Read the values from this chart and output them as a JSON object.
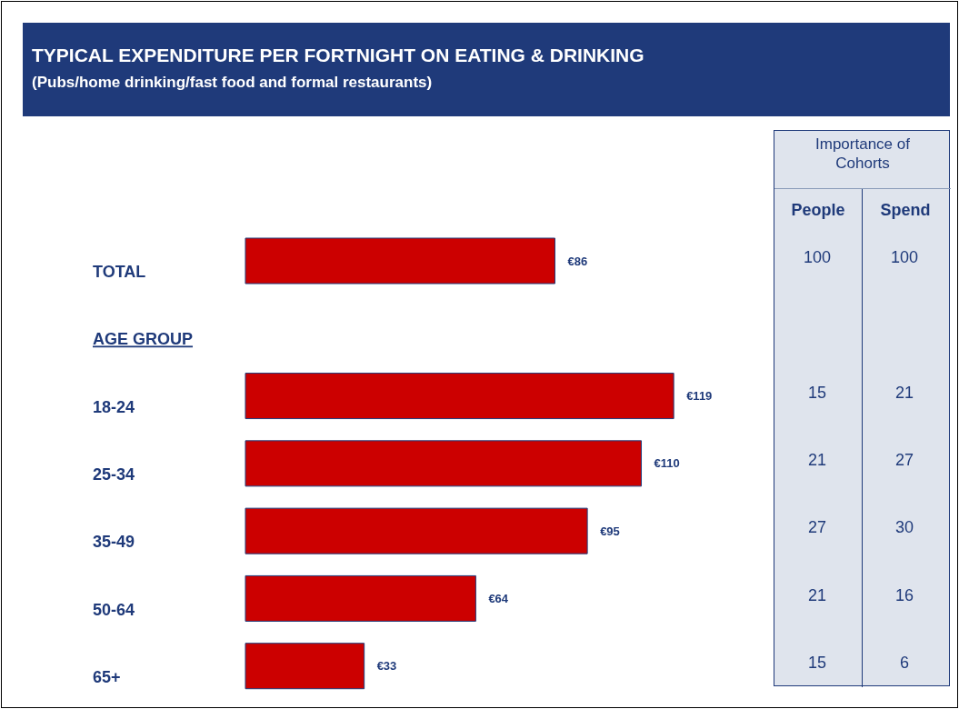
{
  "chart_data": {
    "type": "bar",
    "orientation": "horizontal",
    "title": "TYPICAL EXPENDITURE PER FORTNIGHT ON EATING & DRINKING",
    "subtitle": "(Pubs/home drinking/fast food and formal restaurants)",
    "categories": [
      "TOTAL",
      "AGE GROUP",
      "18-24",
      "25-34",
      "35-49",
      "50-64",
      "65+"
    ],
    "values": [
      86,
      null,
      119,
      110,
      95,
      64,
      33
    ],
    "value_labels": [
      "€86",
      null,
      "€119",
      "€110",
      "€95",
      "€64",
      "€33"
    ],
    "color": "#cc0000",
    "annotations": [
      "Importance of Cohorts",
      "People",
      "Spend",
      "100",
      "100",
      "15",
      "21",
      "21",
      "27",
      "27",
      "30",
      "21",
      "16",
      "15",
      "6"
    ]
  }
}
